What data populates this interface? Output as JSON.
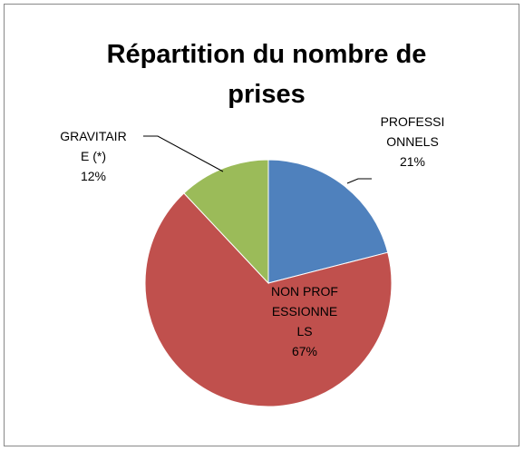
{
  "chart_data": {
    "type": "pie",
    "title": "Répartition du nombre de prises",
    "categories": [
      "PROFESSIONNELS",
      "NON PROFESSIONNELS",
      "GRAVITAIRE (*)"
    ],
    "values": [
      21,
      67,
      12
    ],
    "value_labels": [
      "21%",
      "67%",
      "12%"
    ],
    "colors": [
      "#4f81bd",
      "#c0504d",
      "#9bbb59"
    ]
  }
}
